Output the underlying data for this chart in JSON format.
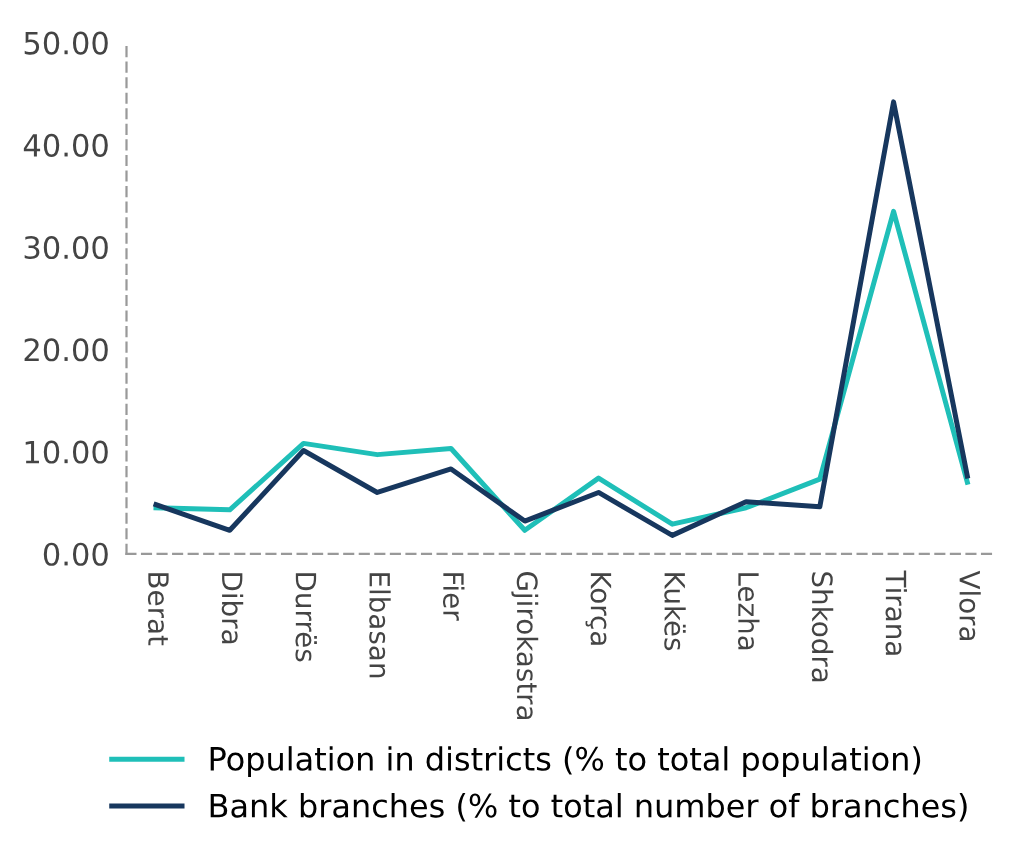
{
  "chart_data": {
    "type": "line",
    "categories": [
      "Berat",
      "Dibra",
      "Durrës",
      "Elbasan",
      "Fier",
      "Gjirokastra",
      "Korça",
      "Kukës",
      "Lezha",
      "Shkodra",
      "Tirana",
      "Vlora"
    ],
    "series": [
      {
        "name": "Population in districts (% to total population)",
        "color": "#1fbfb8",
        "values": [
          4.5,
          4.3,
          10.8,
          9.7,
          10.3,
          2.3,
          7.4,
          2.9,
          4.5,
          7.3,
          33.5,
          7.0
        ]
      },
      {
        "name": "Bank branches (% to total number of branches)",
        "color": "#17375e",
        "values": [
          4.8,
          2.3,
          10.1,
          6.0,
          8.3,
          3.2,
          6.0,
          1.8,
          5.1,
          4.6,
          44.2,
          7.6
        ]
      }
    ],
    "ylim": [
      0,
      50
    ],
    "yticks": [
      {
        "value": 0,
        "label": "0.00"
      },
      {
        "value": 10,
        "label": "10.00"
      },
      {
        "value": 20,
        "label": "20.00"
      },
      {
        "value": 30,
        "label": "30.00"
      },
      {
        "value": 40,
        "label": "40.00"
      },
      {
        "value": 50,
        "label": "50.00"
      }
    ],
    "grid": false,
    "legend": "bottom",
    "marker": "none",
    "line_style": "solid"
  }
}
